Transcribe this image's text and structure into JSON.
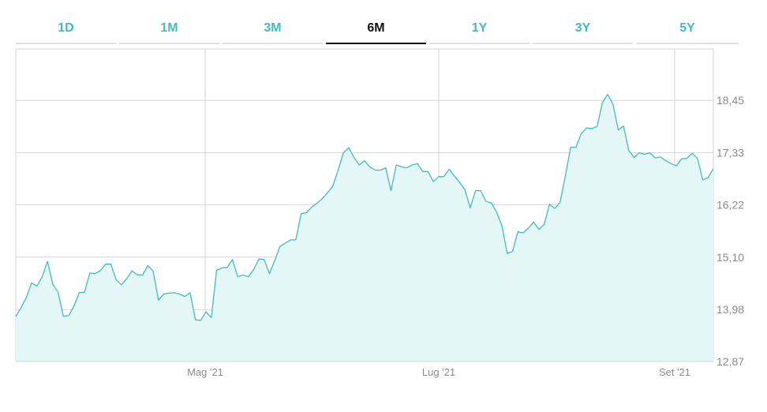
{
  "tabs": [
    "1D",
    "1M",
    "3M",
    "6M",
    "1Y",
    "3Y",
    "5Y"
  ],
  "active_tab": "6M",
  "colors": {
    "accent": "#3fbcbc",
    "fill": "#e4f7f6",
    "grid": "#d6d6d6"
  },
  "chart_data": {
    "type": "area",
    "title": "",
    "xlabel": "",
    "ylabel": "",
    "ylim": [
      12.87,
      19.55
    ],
    "y_ticks": [
      "12,87",
      "13,98",
      "15,10",
      "16,22",
      "17,33",
      "18,45"
    ],
    "x_ticks": [
      "Mag '21",
      "Lug '21",
      "Set '21"
    ],
    "grid": true,
    "series": [
      {
        "values": [
          13.83,
          14.02,
          14.24,
          14.55,
          14.48,
          14.68,
          15.01,
          14.52,
          14.35,
          13.84,
          13.85,
          14.05,
          14.34,
          14.35,
          14.76,
          14.75,
          14.81,
          14.95,
          14.95,
          14.62,
          14.51,
          14.64,
          14.81,
          14.72,
          14.72,
          14.92,
          14.8,
          14.18,
          14.31,
          14.33,
          14.34,
          14.31,
          14.26,
          14.34,
          13.76,
          13.75,
          13.93,
          13.81,
          14.82,
          14.87,
          14.88,
          15.05,
          14.68,
          14.72,
          14.68,
          14.83,
          15.06,
          15.05,
          14.75,
          15.03,
          15.33,
          15.4,
          15.47,
          15.47,
          16.03,
          16.05,
          16.17,
          16.25,
          16.35,
          16.48,
          16.62,
          16.96,
          17.33,
          17.44,
          17.23,
          17.07,
          17.16,
          17.03,
          16.96,
          16.96,
          17.01,
          16.52,
          17.07,
          17.03,
          17.01,
          17.07,
          17.1,
          16.93,
          16.93,
          16.72,
          16.82,
          16.82,
          16.98,
          16.83,
          16.7,
          16.54,
          16.15,
          16.52,
          16.52,
          16.29,
          16.26,
          16.06,
          15.77,
          15.18,
          15.22,
          15.64,
          15.62,
          15.72,
          15.85,
          15.69,
          15.8,
          16.23,
          16.14,
          16.27,
          16.84,
          17.45,
          17.45,
          17.74,
          17.86,
          17.85,
          17.89,
          18.4,
          18.58,
          18.37,
          17.82,
          17.9,
          17.38,
          17.23,
          17.33,
          17.3,
          17.33,
          17.22,
          17.24,
          17.16,
          17.1,
          17.05,
          17.2,
          17.21,
          17.32,
          17.21,
          16.75,
          16.8,
          16.99
        ]
      }
    ]
  }
}
